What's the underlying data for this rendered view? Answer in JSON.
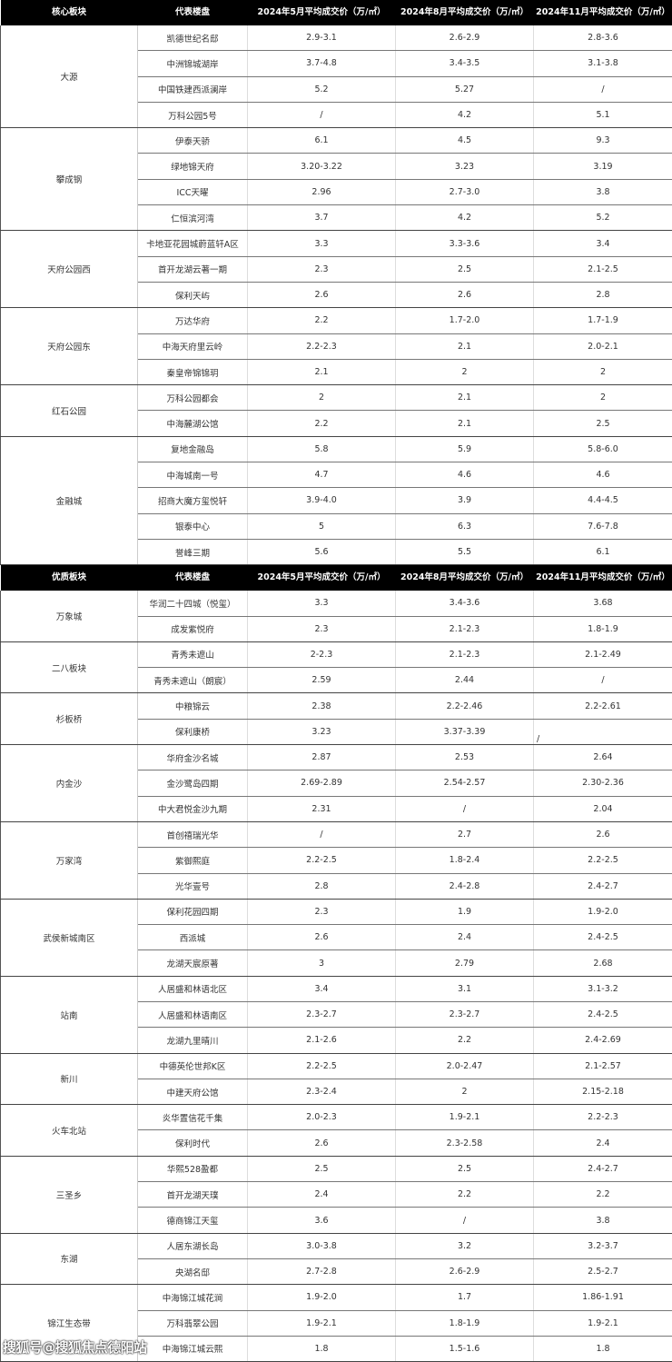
{
  "tables": [
    {
      "headers": [
        "核心板块",
        "代表楼盘",
        "2024年5月平均成交价（万/㎡）",
        "2024年8月平均成交价（万/㎡）",
        "2024年11月平均成交价（万/㎡）"
      ],
      "groups": [
        {
          "name": "大源",
          "rows": [
            [
              "凯德世纪名邸",
              "2.9-3.1",
              "2.6-2.9",
              "2.8-3.6"
            ],
            [
              "中洲锦城湖岸",
              "3.7-4.8",
              "3.4-3.5",
              "3.1-3.8"
            ],
            [
              "中国铁建西派澜岸",
              "5.2",
              "5.27",
              "/"
            ],
            [
              "万科公园5号",
              "/",
              "4.2",
              "5.1"
            ]
          ]
        },
        {
          "name": "攀成钢",
          "rows": [
            [
              "伊泰天骄",
              "6.1",
              "4.5",
              "9.3"
            ],
            [
              "绿地锦天府",
              "3.20-3.22",
              "3.23",
              "3.19"
            ],
            [
              "ICC天曜",
              "2.96",
              "2.7-3.0",
              "3.8"
            ],
            [
              "仁恒滨河湾",
              "3.7",
              "4.2",
              "5.2"
            ]
          ]
        },
        {
          "name": "天府公园西",
          "rows": [
            [
              "卡地亚花园城蔚蓝轩A区",
              "3.3",
              "3.3-3.6",
              "3.4"
            ],
            [
              "首开龙湖云著一期",
              "2.3",
              "2.5",
              "2.1-2.5"
            ],
            [
              "保利天屿",
              "2.6",
              "2.6",
              "2.8"
            ]
          ]
        },
        {
          "name": "天府公园东",
          "rows": [
            [
              "万达华府",
              "2.2",
              "1.7-2.0",
              "1.7-1.9"
            ],
            [
              "中海天府里云岭",
              "2.2-2.3",
              "2.1",
              "2.0-2.1"
            ],
            [
              "秦皇帝锦锦玥",
              "2.1",
              "2",
              "2"
            ]
          ]
        },
        {
          "name": "红石公园",
          "rows": [
            [
              "万科公园都会",
              "2",
              "2.1",
              "2"
            ],
            [
              "中海麓湖公馆",
              "2.2",
              "2.1",
              "2.5"
            ]
          ]
        },
        {
          "name": "金融城",
          "rows": [
            [
              "复地金融岛",
              "5.8",
              "5.9",
              "5.8-6.0"
            ],
            [
              "中海城南一号",
              "4.7",
              "4.6",
              "4.6"
            ],
            [
              "招商大魔方玺悦轩",
              "3.9-4.0",
              "3.9",
              "4.4-4.5"
            ],
            [
              "银泰中心",
              "5",
              "6.3",
              "7.6-7.8"
            ],
            [
              "誉峰三期",
              "5.6",
              "5.5",
              "6.1"
            ]
          ]
        }
      ]
    },
    {
      "headers": [
        "优质板块",
        "代表楼盘",
        "2024年5月平均成交价（万/㎡）",
        "2024年8月平均成交价（万/㎡）",
        "2024年11月平均成交价（万/㎡）"
      ],
      "groups": [
        {
          "name": "万象城",
          "rows": [
            [
              "华润二十四城（悦玺）",
              "3.3",
              "3.4-3.6",
              "3.68"
            ],
            [
              "成发紫悦府",
              "2.3",
              "2.1-2.3",
              "1.8-1.9"
            ]
          ]
        },
        {
          "name": "二八板块",
          "rows": [
            [
              "青秀未遮山",
              "2-2.3",
              "2.1-2.3",
              "2.1-2.49"
            ],
            [
              "青秀未遮山（朗宸）",
              "2.59",
              "2.44",
              "/"
            ]
          ]
        },
        {
          "name": "杉板桥",
          "rows": [
            [
              "中粮锦云",
              "2.38",
              "2.2-2.46",
              "2.2-2.61"
            ],
            [
              "保利康桥",
              "3.23",
              "3.37-3.39",
              "/"
            ]
          ]
        },
        {
          "name": "内金沙",
          "rows": [
            [
              "华府金沙名城",
              "2.87",
              "2.53",
              "2.64"
            ],
            [
              "金沙鹭岛四期",
              "2.69-2.89",
              "2.54-2.57",
              "2.30-2.36"
            ],
            [
              "中大君悦金沙九期",
              "2.31",
              "/",
              "2.04"
            ]
          ]
        },
        {
          "name": "万家湾",
          "rows": [
            [
              "首创禧瑞光华",
              "/",
              "2.7",
              "2.6"
            ],
            [
              "紫御熙庭",
              "2.2-2.5",
              "1.8-2.4",
              "2.2-2.5"
            ],
            [
              "光华壹号",
              "2.8",
              "2.4-2.8",
              "2.4-2.7"
            ]
          ]
        },
        {
          "name": "武侯新城南区",
          "rows": [
            [
              "保利花园四期",
              "2.3",
              "1.9",
              "1.9-2.0"
            ],
            [
              "西派城",
              "2.6",
              "2.4",
              "2.4-2.5"
            ],
            [
              "龙湖天宸原著",
              "3",
              "2.79",
              "2.68"
            ]
          ]
        },
        {
          "name": "站南",
          "rows": [
            [
              "人居盛和林语北区",
              "3.4",
              "3.1",
              "3.1-3.2"
            ],
            [
              "人居盛和林语南区",
              "2.3-2.7",
              "2.3-2.7",
              "2.4-2.5"
            ],
            [
              "龙湖九里晴川",
              "2.1-2.6",
              "2.2",
              "2.4-2.69"
            ]
          ]
        },
        {
          "name": "新川",
          "rows": [
            [
              "中德英伦世邦K区",
              "2.2-2.5",
              "2.0-2.47",
              "2.1-2.57"
            ],
            [
              "中建天府公馆",
              "2.3-2.4",
              "2",
              "2.15-2.18"
            ]
          ]
        },
        {
          "name": "火车北站",
          "rows": [
            [
              "炎华置信花千集",
              "2.0-2.3",
              "1.9-2.1",
              "2.2-2.3"
            ],
            [
              "保利时代",
              "2.6",
              "2.3-2.58",
              "2.4"
            ]
          ]
        },
        {
          "name": "三圣乡",
          "rows": [
            [
              "华熙528盈都",
              "2.5",
              "2.5",
              "2.4-2.7"
            ],
            [
              "首开龙湖天璞",
              "2.4",
              "2.2",
              "2.2"
            ],
            [
              "德商锦江天玺",
              "3.6",
              "/",
              "3.8"
            ]
          ]
        },
        {
          "name": "东湖",
          "rows": [
            [
              "人居东湖长岛",
              "3.0-3.8",
              "3.2",
              "3.2-3.7"
            ],
            [
              "央湖名邸",
              "2.7-2.8",
              "2.6-2.9",
              "2.5-2.7"
            ]
          ]
        },
        {
          "name": "锦江生态带",
          "rows": [
            [
              "中海锦江城花涧",
              "1.9-2.0",
              "1.7",
              "1.86-1.91"
            ],
            [
              "万科翡翠公园",
              "1.9-2.1",
              "1.8-1.9",
              "1.9-2.1"
            ],
            [
              "中海锦江城云熙",
              "1.8",
              "1.5-1.6",
              "1.8"
            ]
          ]
        }
      ]
    }
  ],
  "watermark": "搜狐号@搜狐焦点德阳站"
}
